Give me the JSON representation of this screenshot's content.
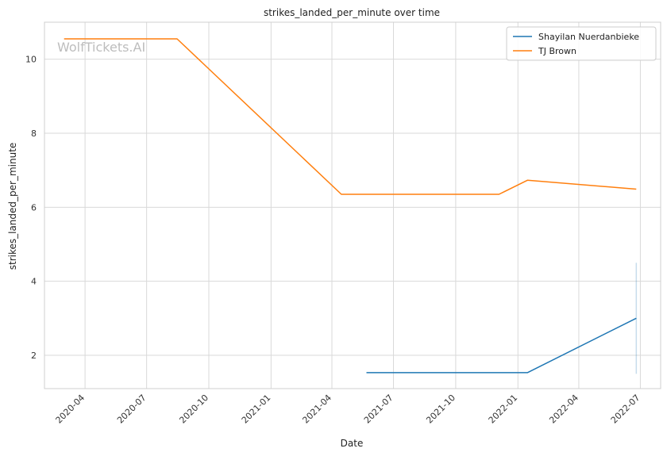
{
  "watermark": "WolfTickets.AI",
  "chart_data": {
    "type": "line",
    "title": "strikes_landed_per_minute over time",
    "xlabel": "Date",
    "ylabel": "strikes_landed_per_minute",
    "x_ticks": [
      "2020-04",
      "2020-07",
      "2020-10",
      "2021-01",
      "2021-04",
      "2021-07",
      "2021-10",
      "2022-01",
      "2022-04",
      "2022-07"
    ],
    "y_ticks": [
      "2",
      "4",
      "6",
      "8",
      "10"
    ],
    "xlim": [
      "2020-02-01",
      "2022-07-31"
    ],
    "ylim": [
      1.1,
      11.0
    ],
    "grid": true,
    "legend_position": "top-right",
    "series": [
      {
        "name": "Shayilan Nuerdanbieke",
        "color": "#1f77b4",
        "points": [
          {
            "x": "2021-05-22",
            "y": 1.53
          },
          {
            "x": "2022-01-15",
            "y": 1.53
          },
          {
            "x": "2022-06-25",
            "y": 3.0
          }
        ],
        "band": {
          "x": "2022-06-25",
          "low": 1.5,
          "high": 4.5
        }
      },
      {
        "name": "TJ Brown",
        "color": "#ff7f0e",
        "points": [
          {
            "x": "2020-03-01",
            "y": 10.55
          },
          {
            "x": "2020-08-15",
            "y": 10.55
          },
          {
            "x": "2021-04-15",
            "y": 6.35
          },
          {
            "x": "2021-12-04",
            "y": 6.35
          },
          {
            "x": "2022-01-15",
            "y": 6.73
          },
          {
            "x": "2022-06-25",
            "y": 6.49
          }
        ]
      }
    ]
  }
}
